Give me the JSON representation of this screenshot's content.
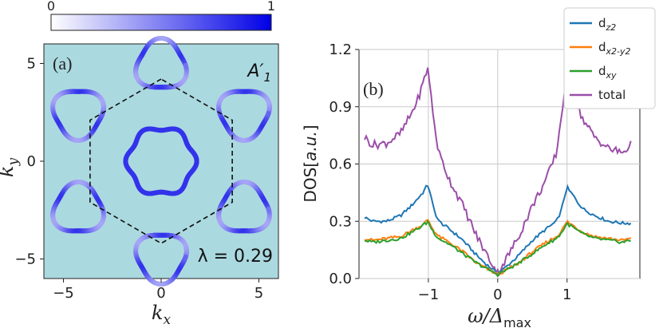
{
  "chart_data": [
    {
      "type": "heatmap",
      "panel": "(a)",
      "annotation_top": "A′1",
      "annotation_bottom": "λ = 0.29",
      "xlabel": "kx",
      "ylabel": "ky",
      "xlim": [
        -6,
        6
      ],
      "ylim": [
        -6,
        6
      ],
      "xticks": [
        -5,
        0,
        5
      ],
      "yticks": [
        -5,
        0,
        5
      ],
      "colorbar": {
        "min": 0,
        "max": 1,
        "ticks": [
          "0",
          "1"
        ],
        "low_color": "#ffffff",
        "high_color": "#0000e6"
      },
      "background_color": "#abd9e0",
      "hexagon_vertex_radius": 4.2,
      "center_pocket_radius": 1.7,
      "corner_pocket_distance": 4.9,
      "corner_pocket_radius": 1.25
    },
    {
      "type": "line",
      "panel": "(b)",
      "xlabel": "ω/Δmax",
      "ylabel": "DOS[a.u.]",
      "xlim": [
        -2.0,
        2.05
      ],
      "ylim": [
        0,
        1.2
      ],
      "xticks": [
        -1,
        0,
        1
      ],
      "yticks": [
        0.0,
        0.3,
        0.6,
        0.9,
        1.2
      ],
      "grid": true,
      "legend_position": "top-right",
      "x": [
        -1.92,
        -1.8,
        -1.6,
        -1.4,
        -1.25,
        -1.15,
        -1.08,
        -1.03,
        -1.0,
        -0.97,
        -0.92,
        -0.85,
        -0.7,
        -0.5,
        -0.3,
        -0.15,
        -0.05,
        0.0,
        0.05,
        0.15,
        0.3,
        0.5,
        0.7,
        0.85,
        0.92,
        0.97,
        1.0,
        1.03,
        1.08,
        1.15,
        1.25,
        1.4,
        1.6,
        1.8,
        1.92
      ],
      "series": [
        {
          "name": "dz2",
          "color": "#1f77b4",
          "values": [
            0.32,
            0.3,
            0.3,
            0.33,
            0.38,
            0.42,
            0.45,
            0.48,
            0.49,
            0.44,
            0.36,
            0.3,
            0.26,
            0.2,
            0.12,
            0.07,
            0.04,
            0.03,
            0.04,
            0.07,
            0.12,
            0.2,
            0.26,
            0.3,
            0.36,
            0.44,
            0.48,
            0.46,
            0.44,
            0.4,
            0.36,
            0.33,
            0.3,
            0.29,
            0.29
          ]
        },
        {
          "name": "dx2-y2",
          "color": "#ff7f0e",
          "values": [
            0.21,
            0.2,
            0.21,
            0.22,
            0.25,
            0.27,
            0.28,
            0.3,
            0.31,
            0.28,
            0.25,
            0.22,
            0.19,
            0.14,
            0.08,
            0.05,
            0.03,
            0.02,
            0.03,
            0.05,
            0.08,
            0.14,
            0.19,
            0.22,
            0.25,
            0.28,
            0.3,
            0.29,
            0.28,
            0.26,
            0.24,
            0.22,
            0.21,
            0.2,
            0.21
          ]
        },
        {
          "name": "dxy",
          "color": "#2ca02c",
          "values": [
            0.2,
            0.19,
            0.2,
            0.21,
            0.24,
            0.26,
            0.28,
            0.29,
            0.3,
            0.27,
            0.24,
            0.21,
            0.18,
            0.13,
            0.08,
            0.05,
            0.03,
            0.02,
            0.03,
            0.05,
            0.08,
            0.13,
            0.18,
            0.21,
            0.24,
            0.27,
            0.29,
            0.28,
            0.27,
            0.25,
            0.23,
            0.21,
            0.2,
            0.19,
            0.2
          ]
        },
        {
          "name": "total",
          "color": "#9b4ea8",
          "values": [
            0.74,
            0.7,
            0.71,
            0.76,
            0.86,
            0.94,
            1.02,
            1.08,
            1.11,
            0.98,
            0.82,
            0.66,
            0.52,
            0.38,
            0.22,
            0.12,
            0.06,
            0.03,
            0.06,
            0.12,
            0.22,
            0.38,
            0.52,
            0.66,
            0.86,
            1.0,
            1.08,
            1.04,
            0.98,
            0.9,
            0.82,
            0.74,
            0.68,
            0.66,
            0.7
          ]
        }
      ]
    }
  ]
}
